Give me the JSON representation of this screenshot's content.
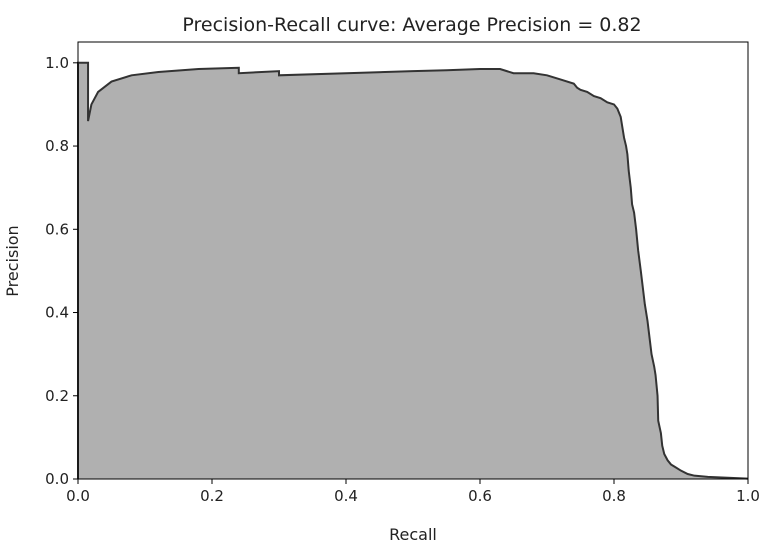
{
  "chart_data": {
    "type": "area",
    "title": "Precision-Recall curve: Average Precision = 0.82",
    "xlabel": "Recall",
    "ylabel": "Precision",
    "xlim": [
      0.0,
      1.0
    ],
    "ylim": [
      0.0,
      1.05
    ],
    "x_ticks": [
      "0.0",
      "0.2",
      "0.4",
      "0.6",
      "0.8",
      "1.0"
    ],
    "y_ticks": [
      "0.0",
      "0.2",
      "0.4",
      "0.6",
      "0.8",
      "1.0"
    ],
    "grid": false,
    "legend": "none",
    "fill_color": "#b0b0b0",
    "line_color": "#333333",
    "series": [
      {
        "recall": [
          0.0,
          0.0,
          0.015,
          0.015,
          0.02,
          0.03,
          0.05,
          0.08,
          0.12,
          0.18,
          0.24,
          0.24,
          0.3,
          0.3,
          0.4,
          0.5,
          0.55,
          0.6,
          0.63,
          0.64,
          0.65,
          0.66,
          0.68,
          0.7,
          0.72,
          0.74,
          0.745,
          0.75,
          0.76,
          0.77,
          0.78,
          0.79,
          0.8,
          0.805,
          0.81,
          0.812,
          0.815,
          0.818,
          0.82,
          0.822,
          0.825,
          0.827,
          0.83,
          0.833,
          0.836,
          0.84,
          0.843,
          0.846,
          0.85,
          0.853,
          0.856,
          0.86,
          0.862,
          0.865,
          0.866,
          0.87,
          0.872,
          0.875,
          0.88,
          0.885,
          0.89,
          0.9,
          0.91,
          0.92,
          0.94,
          0.97,
          1.0
        ],
        "precision": [
          0.0,
          1.0,
          1.0,
          0.86,
          0.9,
          0.93,
          0.955,
          0.97,
          0.978,
          0.985,
          0.988,
          0.975,
          0.98,
          0.97,
          0.975,
          0.98,
          0.982,
          0.985,
          0.985,
          0.98,
          0.975,
          0.975,
          0.975,
          0.97,
          0.96,
          0.95,
          0.94,
          0.935,
          0.93,
          0.92,
          0.915,
          0.905,
          0.9,
          0.89,
          0.87,
          0.85,
          0.82,
          0.8,
          0.78,
          0.74,
          0.7,
          0.66,
          0.64,
          0.6,
          0.55,
          0.5,
          0.46,
          0.42,
          0.38,
          0.34,
          0.3,
          0.27,
          0.25,
          0.2,
          0.14,
          0.11,
          0.08,
          0.06,
          0.045,
          0.035,
          0.03,
          0.02,
          0.012,
          0.008,
          0.005,
          0.003,
          0.001
        ]
      }
    ]
  }
}
